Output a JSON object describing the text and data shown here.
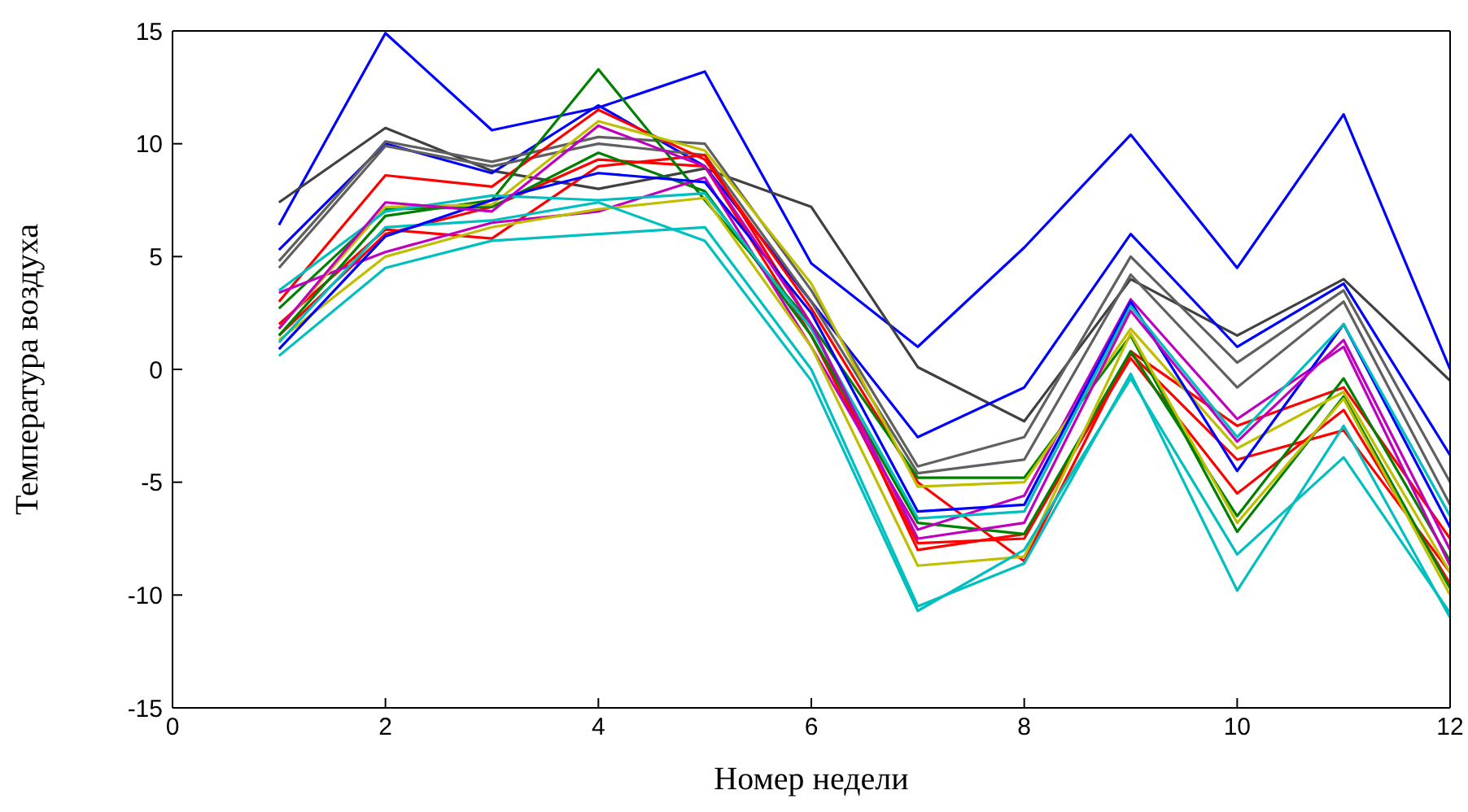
{
  "chart_data": {
    "type": "line",
    "xlabel": "Номер недели",
    "ylabel": "Температура  воздуха",
    "x": [
      1,
      2,
      3,
      4,
      5,
      6,
      7,
      8,
      9,
      10,
      11,
      12
    ],
    "xlim": [
      0,
      12
    ],
    "xticks": [
      0,
      2,
      4,
      6,
      8,
      10,
      12
    ],
    "ylim": [
      -15,
      15
    ],
    "yticks": [
      -15,
      -10,
      -5,
      0,
      5,
      10,
      15
    ],
    "grid": false,
    "legend": false,
    "marker": "none",
    "line_style": "solid",
    "series": [
      {
        "color": "#0000ff",
        "values": [
          6.4,
          14.9,
          10.6,
          11.6,
          13.2,
          4.7,
          1.0,
          5.4,
          10.4,
          4.5,
          11.3,
          0
        ]
      },
      {
        "color": "#404040",
        "values": [
          7.4,
          10.7,
          8.8,
          8.0,
          8.9,
          7.2,
          0.1,
          -2.3,
          4.0,
          1.5,
          4.0,
          -0.5
        ]
      },
      {
        "color": "#0000ff",
        "values": [
          5.3,
          10.0,
          8.7,
          11.7,
          9.0,
          3.0,
          -3.0,
          -0.8,
          6.0,
          1.0,
          3.8,
          -3.8
        ]
      },
      {
        "color": "#606060",
        "values": [
          4.8,
          10.1,
          9.2,
          10.3,
          10.0,
          3.5,
          -4.3,
          -3.0,
          5.0,
          0.3,
          3.5,
          -5.0
        ]
      },
      {
        "color": "#606060",
        "values": [
          4.5,
          9.9,
          9.0,
          10.0,
          9.5,
          3.0,
          -4.6,
          -4.0,
          4.2,
          -0.8,
          3.0,
          -6.0
        ]
      },
      {
        "color": "#ff0000",
        "values": [
          3.0,
          8.6,
          8.1,
          11.5,
          9.3,
          2.7,
          -5.0,
          -8.5,
          0.8,
          -2.5,
          -0.8,
          -7.5
        ]
      },
      {
        "color": "#ff0000",
        "values": [
          2.0,
          6.2,
          5.8,
          9.0,
          9.5,
          2.0,
          -8.0,
          -7.3,
          0.5,
          -5.5,
          -1.8,
          -9.5
        ]
      },
      {
        "color": "#ff0000",
        "values": [
          1.5,
          6.0,
          7.2,
          9.3,
          9.0,
          1.5,
          -7.7,
          -7.5,
          0.7,
          -4.0,
          -2.7,
          -9.0
        ]
      },
      {
        "color": "#008000",
        "values": [
          2.7,
          7.1,
          7.2,
          9.6,
          7.9,
          1.5,
          -6.8,
          -7.3,
          0.8,
          -6.5,
          -0.4,
          -8.5
        ]
      },
      {
        "color": "#008000",
        "values": [
          1.5,
          6.8,
          7.5,
          13.3,
          7.5,
          2.0,
          -4.8,
          -4.8,
          1.5,
          -7.2,
          -1.2,
          -9.7
        ]
      },
      {
        "color": "#bf00bf",
        "values": [
          3.4,
          5.2,
          6.5,
          7.0,
          8.5,
          1.0,
          -7.1,
          -5.6,
          3.1,
          -2.2,
          1.0,
          -8.7
        ]
      },
      {
        "color": "#bfbf00",
        "values": [
          1.3,
          5.0,
          6.3,
          7.1,
          7.6,
          1.0,
          -8.7,
          -8.3,
          1.6,
          -6.8,
          -1.3,
          -10.0
        ]
      },
      {
        "color": "#bfbf00",
        "values": [
          1.8,
          7.2,
          7.3,
          11.0,
          9.7,
          3.8,
          -5.2,
          -5.0,
          1.8,
          -3.5,
          -1.0,
          -9.0
        ]
      },
      {
        "color": "#00bfbf",
        "values": [
          1.2,
          6.3,
          6.6,
          7.4,
          5.7,
          -0.5,
          -10.7,
          -8.0,
          -0.4,
          -8.2,
          -3.9,
          -10.8
        ]
      },
      {
        "color": "#00bfbf",
        "values": [
          0.6,
          4.5,
          5.7,
          6.0,
          6.3,
          0.0,
          -10.5,
          -8.6,
          -0.2,
          -9.8,
          -2.5,
          -11.0
        ]
      },
      {
        "color": "#0000ff",
        "values": [
          0.9,
          5.9,
          7.5,
          8.7,
          8.3,
          2.5,
          -6.3,
          -6.0,
          3.0,
          -4.5,
          2.0,
          -7.0
        ]
      },
      {
        "color": "#00bfbf",
        "values": [
          3.5,
          7.0,
          7.7,
          7.5,
          7.8,
          1.8,
          -6.6,
          -6.3,
          2.8,
          -3.0,
          2.0,
          -6.5
        ]
      },
      {
        "color": "#bf00bf",
        "values": [
          1.8,
          7.4,
          7.0,
          10.8,
          9.0,
          2.0,
          -7.5,
          -6.8,
          2.6,
          -3.2,
          1.3,
          -8.0
        ]
      }
    ]
  }
}
